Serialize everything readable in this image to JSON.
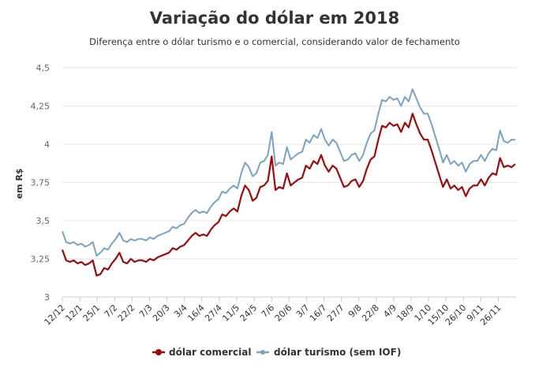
{
  "chart_data": {
    "type": "line",
    "title": "Variação do dólar em 2018",
    "subtitle": "Diferença entre o dólar turismo e o comercial, considerando valor de fechamento",
    "xlabel": "",
    "ylabel": "em R$",
    "ylim": [
      3,
      4.5
    ],
    "yticks": [
      "3",
      "3,25",
      "3,5",
      "3,75",
      "4",
      "4,25",
      "4,5"
    ],
    "ytick_values": [
      3,
      3.25,
      3.5,
      3.75,
      4,
      4.25,
      4.5
    ],
    "grid": true,
    "legend_position": "bottom",
    "x_tick_labels": [
      "12/12",
      "12/1",
      "25/1",
      "7/2",
      "22/2",
      "7/3",
      "20/3",
      "3/4",
      "16/4",
      "27/4",
      "11/5",
      "24/5",
      "7/6",
      "20/6",
      "3/7",
      "16/7",
      "27/7",
      "9/8",
      "22/8",
      "4/9",
      "18/9",
      "1/10",
      "15/10",
      "26/10",
      "9/11",
      "26/11"
    ],
    "series": [
      {
        "name": "dólar comercial",
        "color": "#9e0a0e",
        "values": [
          3.31,
          3.24,
          3.23,
          3.24,
          3.22,
          3.23,
          3.21,
          3.22,
          3.24,
          3.14,
          3.15,
          3.19,
          3.18,
          3.22,
          3.25,
          3.29,
          3.23,
          3.22,
          3.25,
          3.23,
          3.24,
          3.24,
          3.23,
          3.25,
          3.24,
          3.26,
          3.27,
          3.28,
          3.29,
          3.32,
          3.31,
          3.33,
          3.34,
          3.37,
          3.4,
          3.42,
          3.4,
          3.41,
          3.4,
          3.44,
          3.47,
          3.49,
          3.54,
          3.53,
          3.56,
          3.58,
          3.56,
          3.66,
          3.73,
          3.7,
          3.63,
          3.65,
          3.72,
          3.73,
          3.76,
          3.92,
          3.7,
          3.72,
          3.71,
          3.81,
          3.73,
          3.75,
          3.77,
          3.78,
          3.86,
          3.84,
          3.89,
          3.87,
          3.93,
          3.86,
          3.82,
          3.86,
          3.84,
          3.78,
          3.72,
          3.73,
          3.76,
          3.77,
          3.72,
          3.76,
          3.84,
          3.9,
          3.92,
          4.03,
          4.12,
          4.11,
          4.14,
          4.12,
          4.13,
          4.08,
          4.14,
          4.11,
          4.2,
          4.13,
          4.07,
          4.03,
          4.03,
          3.96,
          3.88,
          3.8,
          3.72,
          3.77,
          3.71,
          3.73,
          3.7,
          3.72,
          3.66,
          3.71,
          3.73,
          3.73,
          3.77,
          3.73,
          3.78,
          3.81,
          3.8,
          3.91,
          3.85,
          3.86,
          3.85,
          3.87
        ]
      },
      {
        "name": "dólar turismo (sem IOF)",
        "color": "#7ba3c0",
        "values": [
          3.43,
          3.36,
          3.35,
          3.36,
          3.34,
          3.35,
          3.33,
          3.34,
          3.36,
          3.27,
          3.29,
          3.32,
          3.31,
          3.35,
          3.38,
          3.42,
          3.37,
          3.36,
          3.38,
          3.37,
          3.38,
          3.38,
          3.37,
          3.39,
          3.38,
          3.4,
          3.41,
          3.42,
          3.43,
          3.46,
          3.45,
          3.47,
          3.48,
          3.52,
          3.55,
          3.57,
          3.55,
          3.56,
          3.55,
          3.59,
          3.62,
          3.64,
          3.69,
          3.68,
          3.71,
          3.73,
          3.71,
          3.81,
          3.88,
          3.85,
          3.79,
          3.81,
          3.88,
          3.89,
          3.93,
          4.08,
          3.86,
          3.88,
          3.87,
          3.98,
          3.9,
          3.92,
          3.94,
          3.95,
          4.03,
          4.01,
          4.06,
          4.04,
          4.1,
          4.03,
          3.99,
          4.03,
          4.01,
          3.95,
          3.89,
          3.9,
          3.93,
          3.94,
          3.89,
          3.93,
          4.01,
          4.07,
          4.09,
          4.2,
          4.29,
          4.28,
          4.31,
          4.29,
          4.3,
          4.25,
          4.31,
          4.28,
          4.36,
          4.3,
          4.24,
          4.2,
          4.2,
          4.13,
          4.05,
          3.97,
          3.88,
          3.93,
          3.87,
          3.89,
          3.86,
          3.88,
          3.82,
          3.87,
          3.89,
          3.89,
          3.93,
          3.89,
          3.94,
          3.97,
          3.96,
          4.09,
          4.02,
          4.01,
          4.03,
          4.03
        ]
      }
    ]
  }
}
